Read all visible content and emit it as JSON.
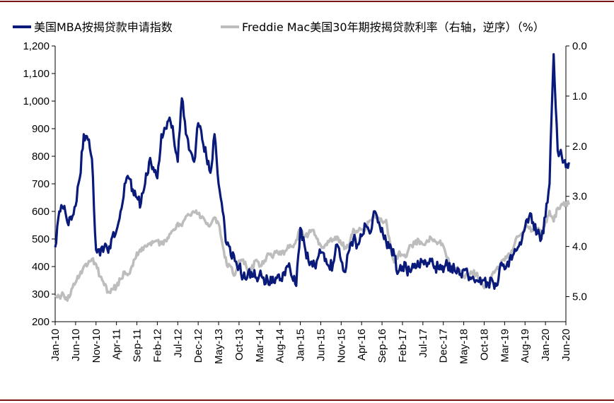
{
  "chart_data": {
    "type": "line",
    "legend_placement": "top",
    "grid": false,
    "series": [
      {
        "name": "美国MBA按揭贷款申请指数",
        "axis": "left",
        "color": "#0a1a7a",
        "x": [
          "2010-01",
          "2010-02",
          "2010-03",
          "2010-04",
          "2010-05",
          "2010-06",
          "2010-07",
          "2010-08",
          "2010-09",
          "2010-10",
          "2010-11",
          "2010-12",
          "2011-01",
          "2011-02",
          "2011-03",
          "2011-04",
          "2011-05",
          "2011-06",
          "2011-07",
          "2011-08",
          "2011-09",
          "2011-10",
          "2011-11",
          "2011-12",
          "2012-01",
          "2012-02",
          "2012-03",
          "2012-04",
          "2012-05",
          "2012-06",
          "2012-07",
          "2012-08",
          "2012-09",
          "2012-10",
          "2012-11",
          "2012-12",
          "2013-01",
          "2013-02",
          "2013-03",
          "2013-04",
          "2013-05",
          "2013-06",
          "2013-07",
          "2013-08",
          "2013-09",
          "2013-10",
          "2013-11",
          "2013-12",
          "2014-01",
          "2014-02",
          "2014-03",
          "2014-04",
          "2014-05",
          "2014-06",
          "2014-07",
          "2014-08",
          "2014-09",
          "2014-10",
          "2014-11",
          "2014-12",
          "2015-01",
          "2015-02",
          "2015-03",
          "2015-04",
          "2015-05",
          "2015-06",
          "2015-07",
          "2015-08",
          "2015-09",
          "2015-10",
          "2015-11",
          "2015-12",
          "2016-01",
          "2016-02",
          "2016-03",
          "2016-04",
          "2016-05",
          "2016-06",
          "2016-07",
          "2016-08",
          "2016-09",
          "2016-10",
          "2016-11",
          "2016-12",
          "2017-01",
          "2017-02",
          "2017-03",
          "2017-04",
          "2017-05",
          "2017-06",
          "2017-07",
          "2017-08",
          "2017-09",
          "2017-10",
          "2017-11",
          "2017-12",
          "2018-01",
          "2018-02",
          "2018-03",
          "2018-04",
          "2018-05",
          "2018-06",
          "2018-07",
          "2018-08",
          "2018-09",
          "2018-10",
          "2018-11",
          "2018-12",
          "2019-01",
          "2019-02",
          "2019-03",
          "2019-04",
          "2019-05",
          "2019-06",
          "2019-07",
          "2019-08",
          "2019-09",
          "2019-10",
          "2019-11",
          "2019-12",
          "2020-01",
          "2020-02",
          "2020-03",
          "2020-04",
          "2020-05",
          "2020-06"
        ],
        "values": [
          470,
          600,
          610,
          560,
          570,
          620,
          720,
          880,
          860,
          790,
          460,
          440,
          470,
          450,
          510,
          530,
          600,
          700,
          720,
          680,
          650,
          630,
          700,
          780,
          760,
          720,
          880,
          900,
          940,
          870,
          780,
          1010,
          880,
          820,
          780,
          920,
          860,
          800,
          740,
          880,
          700,
          600,
          480,
          440,
          420,
          400,
          360,
          360,
          380,
          360,
          370,
          360,
          350,
          340,
          360,
          350,
          380,
          400,
          360,
          330,
          540,
          480,
          420,
          400,
          420,
          450,
          420,
          400,
          410,
          480,
          420,
          380,
          460,
          500,
          480,
          510,
          550,
          520,
          600,
          560,
          540,
          490,
          480,
          440,
          380,
          400,
          390,
          380,
          410,
          400,
          420,
          400,
          420,
          400,
          390,
          380,
          410,
          400,
          380,
          370,
          390,
          370,
          360,
          350,
          360,
          350,
          340,
          350,
          330,
          410,
          390,
          400,
          440,
          460,
          480,
          540,
          580,
          560,
          520,
          500,
          580,
          700,
          1170,
          820,
          800,
          760
        ]
      },
      {
        "name": "Freddie Mac美国30年期按揭贷款利率（右轴，逆序）（%）",
        "axis": "right",
        "color": "#bdbdbd",
        "x": [
          "2010-01",
          "2010-02",
          "2010-03",
          "2010-04",
          "2010-05",
          "2010-06",
          "2010-07",
          "2010-08",
          "2010-09",
          "2010-10",
          "2010-11",
          "2010-12",
          "2011-01",
          "2011-02",
          "2011-03",
          "2011-04",
          "2011-05",
          "2011-06",
          "2011-07",
          "2011-08",
          "2011-09",
          "2011-10",
          "2011-11",
          "2011-12",
          "2012-01",
          "2012-02",
          "2012-03",
          "2012-04",
          "2012-05",
          "2012-06",
          "2012-07",
          "2012-08",
          "2012-09",
          "2012-10",
          "2012-11",
          "2012-12",
          "2013-01",
          "2013-02",
          "2013-03",
          "2013-04",
          "2013-05",
          "2013-06",
          "2013-07",
          "2013-08",
          "2013-09",
          "2013-10",
          "2013-11",
          "2013-12",
          "2014-01",
          "2014-02",
          "2014-03",
          "2014-04",
          "2014-05",
          "2014-06",
          "2014-07",
          "2014-08",
          "2014-09",
          "2014-10",
          "2014-11",
          "2014-12",
          "2015-01",
          "2015-02",
          "2015-03",
          "2015-04",
          "2015-05",
          "2015-06",
          "2015-07",
          "2015-08",
          "2015-09",
          "2015-10",
          "2015-11",
          "2015-12",
          "2016-01",
          "2016-02",
          "2016-03",
          "2016-04",
          "2016-05",
          "2016-06",
          "2016-07",
          "2016-08",
          "2016-09",
          "2016-10",
          "2016-11",
          "2016-12",
          "2017-01",
          "2017-02",
          "2017-03",
          "2017-04",
          "2017-05",
          "2017-06",
          "2017-07",
          "2017-08",
          "2017-09",
          "2017-10",
          "2017-11",
          "2017-12",
          "2018-01",
          "2018-02",
          "2018-03",
          "2018-04",
          "2018-05",
          "2018-06",
          "2018-07",
          "2018-08",
          "2018-09",
          "2018-10",
          "2018-11",
          "2018-12",
          "2019-01",
          "2019-02",
          "2019-03",
          "2019-04",
          "2019-05",
          "2019-06",
          "2019-07",
          "2019-08",
          "2019-09",
          "2019-10",
          "2019-11",
          "2019-12",
          "2020-01",
          "2020-02",
          "2020-03",
          "2020-04",
          "2020-05",
          "2020-06"
        ],
        "values": [
          5.01,
          5.0,
          4.95,
          5.08,
          4.85,
          4.72,
          4.57,
          4.4,
          4.35,
          4.25,
          4.35,
          4.6,
          4.77,
          4.9,
          4.85,
          4.8,
          4.65,
          4.5,
          4.55,
          4.39,
          4.12,
          4.1,
          3.98,
          3.95,
          3.92,
          3.89,
          3.95,
          3.88,
          3.75,
          3.66,
          3.53,
          3.59,
          3.4,
          3.38,
          3.32,
          3.35,
          3.4,
          3.55,
          3.57,
          3.42,
          3.54,
          3.98,
          4.37,
          4.4,
          4.57,
          4.28,
          4.26,
          4.46,
          4.48,
          4.28,
          4.4,
          4.34,
          4.14,
          4.2,
          4.12,
          4.1,
          4.16,
          3.98,
          4.0,
          3.87,
          3.66,
          3.8,
          3.75,
          3.67,
          3.84,
          3.98,
          3.98,
          3.91,
          3.86,
          3.8,
          3.95,
          4.01,
          3.97,
          3.65,
          3.71,
          3.66,
          3.64,
          3.48,
          3.41,
          3.46,
          3.5,
          3.47,
          3.94,
          4.32,
          4.15,
          4.17,
          4.2,
          3.97,
          3.95,
          3.88,
          3.96,
          3.88,
          3.83,
          3.9,
          3.92,
          3.99,
          4.22,
          4.38,
          4.44,
          4.47,
          4.59,
          4.55,
          4.52,
          4.55,
          4.65,
          4.83,
          4.81,
          4.55,
          4.45,
          4.35,
          4.28,
          4.14,
          4.07,
          3.8,
          3.75,
          3.6,
          3.64,
          3.69,
          3.66,
          3.72,
          3.51,
          3.29,
          3.5,
          3.23,
          3.15,
          3.13
        ]
      }
    ],
    "x_tick_labels": [
      "Jan-10",
      "Jun-10",
      "Nov-10",
      "Apr-11",
      "Sep-11",
      "Feb-12",
      "Jul-12",
      "Dec-12",
      "May-13",
      "Oct-13",
      "Mar-14",
      "Aug-14",
      "Jan-15",
      "Jun-15",
      "Nov-15",
      "Apr-16",
      "Sep-16",
      "Feb-17",
      "Jul-17",
      "Dec-17",
      "May-18",
      "Oct-18",
      "Mar-19",
      "Aug-19",
      "Jan-20",
      "Jun-20"
    ],
    "y_left": {
      "min": 200,
      "max": 1200,
      "ticks": [
        200,
        300,
        400,
        500,
        600,
        700,
        800,
        900,
        1000,
        1100,
        1200
      ],
      "tick_labels": [
        "200",
        "300",
        "400",
        "500",
        "600",
        "700",
        "800",
        "900",
        "1,000",
        "1,100",
        "1,200"
      ]
    },
    "y_right": {
      "min": 0.0,
      "max": 5.5,
      "inverted": true,
      "ticks": [
        0.0,
        1.0,
        2.0,
        3.0,
        4.0,
        5.0
      ],
      "tick_labels": [
        "0.0",
        "1.0",
        "2.0",
        "3.0",
        "4.0",
        "5.0"
      ]
    },
    "frame_color": "#7b1416"
  }
}
